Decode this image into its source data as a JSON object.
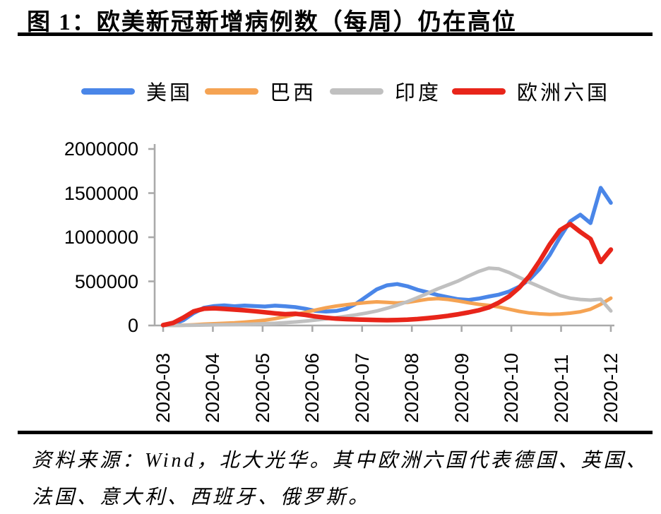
{
  "figure": {
    "title": "图 1：欧美新冠新增病例数（每周）仍在高位",
    "source_line1": "资料来源：Wind，北大光华。其中欧洲六国代表德国、英国、",
    "source_line2": "法国、意大利、西班牙、俄罗斯。"
  },
  "colors": {
    "us_blue": "#4a86e8",
    "brazil_orange": "#f5a353",
    "india_gray": "#c0c0c0",
    "europe_red": "#e8251a",
    "axis_gray": "#aaaaaa",
    "rule_black": "#000000"
  },
  "chart_data": {
    "type": "line",
    "title": "欧美新冠新增病例数（每周）",
    "xlabel": "",
    "ylabel": "",
    "x_frequency": "weekly",
    "categories": [
      "2020-03",
      "2020-04",
      "2020-05",
      "2020-06",
      "2020-07",
      "2020-08",
      "2020-09",
      "2020-10",
      "2020-11",
      "2020-12"
    ],
    "y_ticks": [
      0,
      500000,
      1000000,
      1500000,
      2000000
    ],
    "y_tick_labels": [
      "0",
      "500000",
      "1000000",
      "1500000",
      "2000000"
    ],
    "ylim": [
      0,
      2000000
    ],
    "grid": false,
    "legend_position": "top",
    "series": [
      {
        "name": "美国",
        "color": "#4a86e8",
        "stroke_width": 5.5,
        "values": [
          2000,
          15000,
          60000,
          140000,
          200000,
          220000,
          228000,
          218000,
          226000,
          220000,
          215000,
          225000,
          218000,
          208000,
          190000,
          165000,
          158000,
          165000,
          190000,
          250000,
          330000,
          410000,
          455000,
          470000,
          445000,
          405000,
          375000,
          345000,
          320000,
          298000,
          290000,
          305000,
          328000,
          350000,
          385000,
          440000,
          520000,
          640000,
          800000,
          1000000,
          1180000,
          1255000,
          1160000,
          1560000,
          1390000
        ]
      },
      {
        "name": "巴西",
        "color": "#f5a353",
        "stroke_width": 5,
        "values": [
          0,
          1000,
          3000,
          8000,
          15000,
          20000,
          25000,
          30000,
          38000,
          48000,
          60000,
          78000,
          100000,
          125000,
          150000,
          175000,
          200000,
          220000,
          235000,
          248000,
          260000,
          268000,
          262000,
          255000,
          262000,
          280000,
          298000,
          305000,
          295000,
          278000,
          258000,
          240000,
          228000,
          210000,
          185000,
          160000,
          142000,
          132000,
          126000,
          130000,
          140000,
          155000,
          185000,
          240000,
          310000
        ]
      },
      {
        "name": "印度",
        "color": "#c0c0c0",
        "stroke_width": 5,
        "values": [
          0,
          500,
          1500,
          3000,
          5000,
          7000,
          9000,
          11000,
          13000,
          16000,
          20000,
          25000,
          32000,
          40000,
          50000,
          62000,
          75000,
          90000,
          105000,
          122000,
          142000,
          165000,
          195000,
          230000,
          270000,
          315000,
          365000,
          415000,
          460000,
          505000,
          560000,
          612000,
          650000,
          642000,
          600000,
          545000,
          490000,
          440000,
          390000,
          340000,
          310000,
          295000,
          288000,
          298000,
          165000
        ]
      },
      {
        "name": "欧洲六国",
        "color": "#e8251a",
        "stroke_width": 6.5,
        "values": [
          5000,
          30000,
          90000,
          160000,
          190000,
          195000,
          188000,
          180000,
          172000,
          162000,
          150000,
          138000,
          128000,
          133000,
          120000,
          102000,
          88000,
          78000,
          72000,
          68000,
          65000,
          62000,
          60000,
          62000,
          66000,
          73000,
          83000,
          95000,
          110000,
          127000,
          148000,
          172000,
          205000,
          260000,
          330000,
          430000,
          560000,
          730000,
          920000,
          1080000,
          1150000,
          1060000,
          980000,
          720000,
          860000
        ]
      }
    ]
  }
}
